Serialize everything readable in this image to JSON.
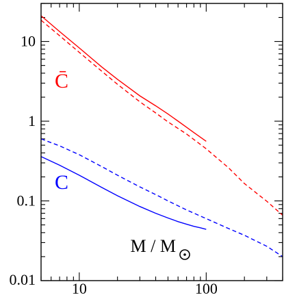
{
  "chart_data": {
    "type": "line",
    "xscale": "log",
    "yscale": "log",
    "xlim": [
      5,
      400
    ],
    "ylim": [
      0.01,
      30
    ],
    "x_ticks": [
      {
        "value": 10,
        "label": "10"
      },
      {
        "value": 100,
        "label": "100"
      }
    ],
    "y_ticks": [
      {
        "value": 10,
        "label": "10"
      },
      {
        "value": 1,
        "label": "1"
      },
      {
        "value": 0.1,
        "label": "0.1"
      },
      {
        "value": 0.01,
        "label": "0.01"
      }
    ],
    "xlabel": "M / M",
    "xlabel_symbol": "sun-symbol",
    "series": [
      {
        "name": "C̄",
        "color": "#ff0000",
        "linestyle": "solid",
        "x": [
          5,
          7,
          10,
          15,
          20,
          30,
          40,
          50,
          60,
          70,
          80,
          90,
          100
        ],
        "y": [
          21,
          13.3,
          8.3,
          4.8,
          3.35,
          2.08,
          1.56,
          1.23,
          1.0,
          0.84,
          0.72,
          0.63,
          0.56
        ]
      },
      {
        "name": "",
        "color": "#ff0000",
        "linestyle": "dashed",
        "x": [
          5,
          7,
          10,
          15,
          20,
          30,
          40,
          50,
          70,
          100,
          150,
          200,
          300,
          400
        ],
        "y": [
          18.5,
          11.8,
          7.3,
          4.25,
          2.9,
          1.75,
          1.27,
          0.98,
          0.69,
          0.45,
          0.26,
          0.165,
          0.099,
          0.066
        ]
      },
      {
        "name": "C",
        "color": "#0000ff",
        "linestyle": "solid",
        "x": [
          5,
          7,
          10,
          15,
          20,
          30,
          40,
          50,
          60,
          70,
          80,
          90,
          100
        ],
        "y": [
          0.36,
          0.28,
          0.21,
          0.148,
          0.116,
          0.085,
          0.07,
          0.061,
          0.055,
          0.051,
          0.048,
          0.046,
          0.044
        ]
      },
      {
        "name": "",
        "color": "#0000ff",
        "linestyle": "dashed",
        "x": [
          5,
          7,
          10,
          15,
          20,
          30,
          40,
          50,
          70,
          100,
          150,
          200,
          300,
          400
        ],
        "y": [
          0.6,
          0.49,
          0.38,
          0.27,
          0.21,
          0.15,
          0.12,
          0.1,
          0.077,
          0.06,
          0.045,
          0.037,
          0.027,
          0.02
        ]
      }
    ]
  }
}
